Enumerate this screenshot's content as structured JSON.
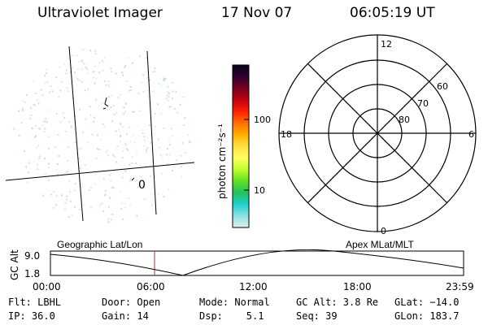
{
  "header": {
    "instrument": "Ultraviolet Imager",
    "date": "17 Nov 07",
    "time": "06:05:19 UT"
  },
  "colorbar": {
    "label": "photon cm⁻²s⁻¹",
    "ticks": [
      "100",
      "10"
    ]
  },
  "polar_plot": {
    "mlt_labels": {
      "top": "12",
      "bottom": "0",
      "left": "18",
      "right": "6"
    },
    "lat_labels": [
      "60",
      "70",
      "80"
    ]
  },
  "geo_map": {
    "annotation": "0"
  },
  "timeline": {
    "left_title": "Geographic Lat/Lon",
    "right_title": "Apex  MLat/MLT",
    "y_label": "GC Alt",
    "y_ticks": [
      "9.0",
      "1.8"
    ],
    "x_ticks": [
      "00:00",
      "06:00",
      "12:00",
      "18:00",
      "23:59"
    ]
  },
  "info": {
    "flt": "Flt: LBHL",
    "door": "Door: Open",
    "mode": "Mode: Normal",
    "gc_alt": "GC Alt: 3.8 Re",
    "glat": "GLat: −14.0",
    "ip": "IP: 36.0",
    "gain": "Gain: 14",
    "dsp": "Dsp:    5.1",
    "seq": "Seq: 39",
    "glon": "GLon: 183.7"
  },
  "colors": {
    "colorbar_stops": [
      "#0a0018",
      "#300030",
      "#7a0020",
      "#c00010",
      "#ff2000",
      "#ff7000",
      "#ffb000",
      "#ffe040",
      "#ffff60",
      "#c0ff30",
      "#60e020",
      "#20c060",
      "#20d0d0",
      "#90e0e0",
      "#e0f0f0"
    ],
    "noise": "#b8d8d0",
    "marker": "#b03030"
  }
}
